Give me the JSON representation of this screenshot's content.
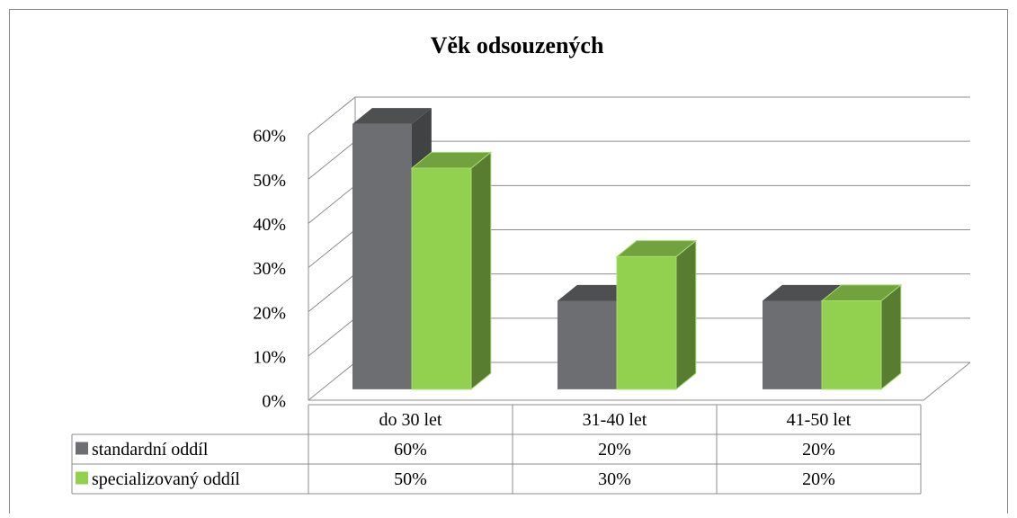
{
  "chart_data": {
    "type": "bar3d",
    "title": "Věk odsouzených",
    "categories": [
      "do 30 let",
      "31-40 let",
      "41-50 let"
    ],
    "series": [
      {
        "name": "standardní oddíl",
        "color": "#6d6e71",
        "values": [
          60,
          20,
          20
        ],
        "value_labels": [
          "60%",
          "20%",
          "20%"
        ]
      },
      {
        "name": "specializovaný oddíl",
        "color": "#92d050",
        "values": [
          50,
          30,
          20
        ],
        "value_labels": [
          "50%",
          "30%",
          "20%"
        ]
      }
    ],
    "ylim": [
      0,
      60
    ],
    "yticks": [
      {
        "value": 0,
        "label": "0%"
      },
      {
        "value": 10,
        "label": "10%"
      },
      {
        "value": 20,
        "label": "20%"
      },
      {
        "value": 30,
        "label": "30%"
      },
      {
        "value": 40,
        "label": "40%"
      },
      {
        "value": 50,
        "label": "50%"
      },
      {
        "value": 60,
        "label": "60%"
      }
    ],
    "grid": true,
    "data_table": true
  }
}
